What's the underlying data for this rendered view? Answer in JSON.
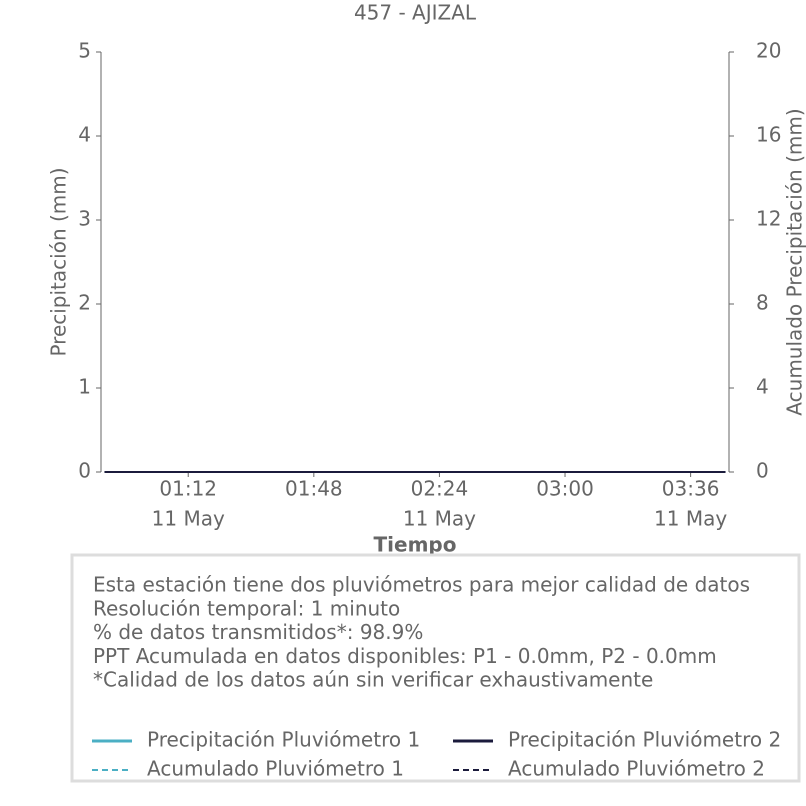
{
  "chart_data": {
    "type": "line",
    "title": "457 - AJIZAL",
    "xlabel": "Tiempo",
    "ylabel": "Precipitación (mm)",
    "y2label": "Acumulado Precipitación (mm)",
    "x": [
      "00:48",
      "01:12",
      "01:48",
      "02:24",
      "03:00",
      "03:36",
      "03:46"
    ],
    "xlim": [
      "00:47",
      "03:47"
    ],
    "xticks": [
      {
        "value": "01:12",
        "label": "01:12",
        "date": "11 May"
      },
      {
        "value": "01:48",
        "label": "01:48"
      },
      {
        "value": "02:24",
        "label": "02:24",
        "date": "11 May"
      },
      {
        "value": "03:00",
        "label": "03:00"
      },
      {
        "value": "03:36",
        "label": "03:36",
        "date": "11 May"
      }
    ],
    "ylim": [
      0,
      5
    ],
    "yticks": [
      0,
      1,
      2,
      3,
      4,
      5
    ],
    "y2lim": [
      0,
      20
    ],
    "y2ticks": [
      0,
      4,
      8,
      12,
      16,
      20
    ],
    "series": [
      {
        "name": "Precipitación Pluviómetro 1",
        "color": "#4bafc4",
        "dash": false,
        "values": [
          0,
          0,
          0,
          0,
          0,
          0,
          0
        ]
      },
      {
        "name": "Acumulado Pluviómetro 1",
        "color": "#4bafc4",
        "dash": true,
        "axis": "y2",
        "values": [
          0,
          0,
          0,
          0,
          0,
          0,
          0
        ]
      },
      {
        "name": "Precipitación Pluviómetro 2",
        "color": "#1b1b3c",
        "dash": false,
        "values": [
          0,
          0,
          0,
          0,
          0,
          0,
          0
        ]
      },
      {
        "name": "Acumulado Pluviómetro 2",
        "color": "#1b1b3c",
        "dash": true,
        "axis": "y2",
        "values": [
          0,
          0,
          0,
          0,
          0,
          0,
          0
        ]
      }
    ],
    "notes": [
      "Esta estación tiene dos pluviómetros para mejor calidad de datos",
      "Resolución temporal: 1 minuto",
      "% de datos transmitidos*: 98.9%",
      "PPT Acumulada en datos disponibles: P1 - 0.0mm, P2 - 0.0mm",
      "*Calidad de los datos aún sin verificar exhaustivamente"
    ]
  }
}
